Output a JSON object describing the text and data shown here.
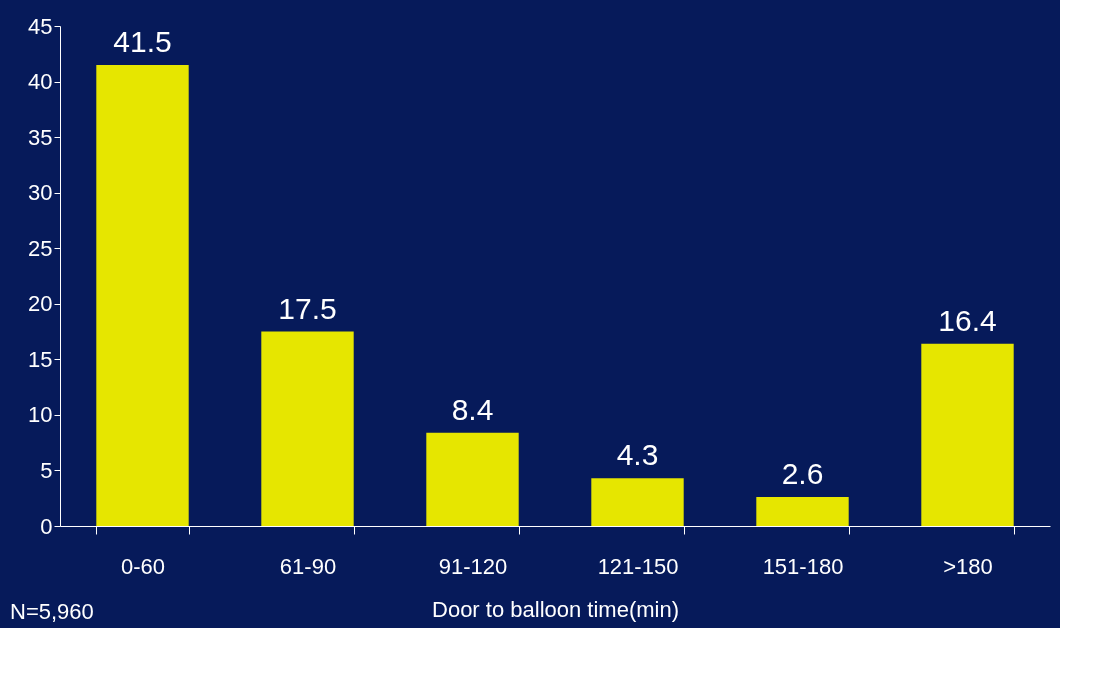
{
  "chart_data": {
    "type": "bar",
    "categories": [
      "0-60",
      "61-90",
      "91-120",
      "121-150",
      "151-180",
      ">180"
    ],
    "values": [
      41.5,
      17.5,
      8.4,
      4.3,
      2.6,
      16.4
    ],
    "color": "#e6e600",
    "xlabel": "Door to balloon time(min)",
    "ylim": [
      0,
      45
    ],
    "yticks": [
      0,
      5,
      10,
      15,
      20,
      25,
      30,
      35,
      40,
      45
    ],
    "data_labels": true,
    "grid": false,
    "annotations": [
      "N=5,960"
    ]
  }
}
